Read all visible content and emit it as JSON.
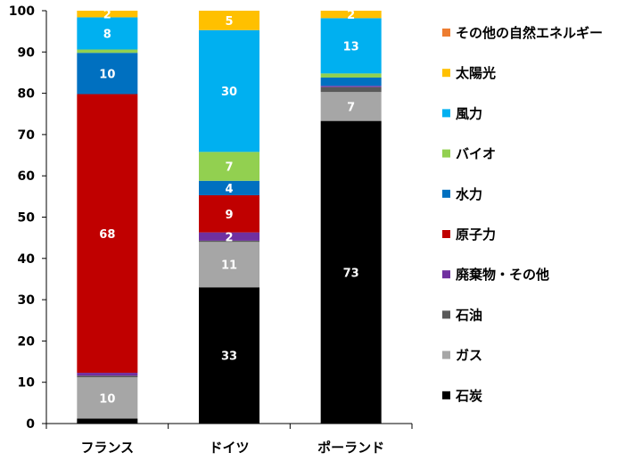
{
  "chart_data": {
    "type": "bar",
    "stacked": true,
    "categories": [
      "フランス",
      "ドイツ",
      "ポーランド"
    ],
    "ylim": [
      0,
      100
    ],
    "yticks": [
      0,
      10,
      20,
      30,
      40,
      50,
      60,
      70,
      80,
      90,
      100
    ],
    "grid": false,
    "legend_position": "right",
    "series": [
      {
        "name": "石炭",
        "color": "#000000",
        "values": [
          1.2,
          33,
          73.3
        ],
        "labels": [
          "",
          "33",
          "73"
        ]
      },
      {
        "name": "ガス",
        "color": "#a6a6a6",
        "values": [
          10,
          11,
          7
        ],
        "labels": [
          "10",
          "11",
          "7"
        ]
      },
      {
        "name": "石油",
        "color": "#595959",
        "values": [
          0.4,
          0.3,
          1.2
        ],
        "labels": [
          "",
          "",
          ""
        ]
      },
      {
        "name": "廃棄物・その他",
        "color": "#7030a0",
        "values": [
          0.7,
          2,
          0.3
        ],
        "labels": [
          "",
          "2",
          ""
        ]
      },
      {
        "name": "原子力",
        "color": "#c00000",
        "values": [
          67.5,
          9,
          0
        ],
        "labels": [
          "68",
          "9",
          ""
        ]
      },
      {
        "name": "水力",
        "color": "#0070c0",
        "values": [
          10,
          3.5,
          2
        ],
        "labels": [
          "10",
          "4",
          ""
        ]
      },
      {
        "name": "バイオ",
        "color": "#92d050",
        "values": [
          0.8,
          7,
          1
        ],
        "labels": [
          "",
          "7",
          ""
        ]
      },
      {
        "name": "風力",
        "color": "#00b0f0",
        "values": [
          7.8,
          29.5,
          13.4
        ],
        "labels": [
          "8",
          "30",
          "13"
        ]
      },
      {
        "name": "太陽光",
        "color": "#ffc000",
        "values": [
          1.6,
          4.7,
          2.3
        ],
        "labels": [
          "2",
          "5",
          "2"
        ]
      },
      {
        "name": "その他の自然エネルギー",
        "color": "#ed7d31",
        "values": [
          0,
          0.5,
          0
        ],
        "labels": [
          "",
          "",
          ""
        ]
      }
    ],
    "legend_order": [
      "その他の自然エネルギー",
      "太陽光",
      "風力",
      "バイオ",
      "水力",
      "原子力",
      "廃棄物・その他",
      "石油",
      "ガス",
      "石炭"
    ]
  }
}
